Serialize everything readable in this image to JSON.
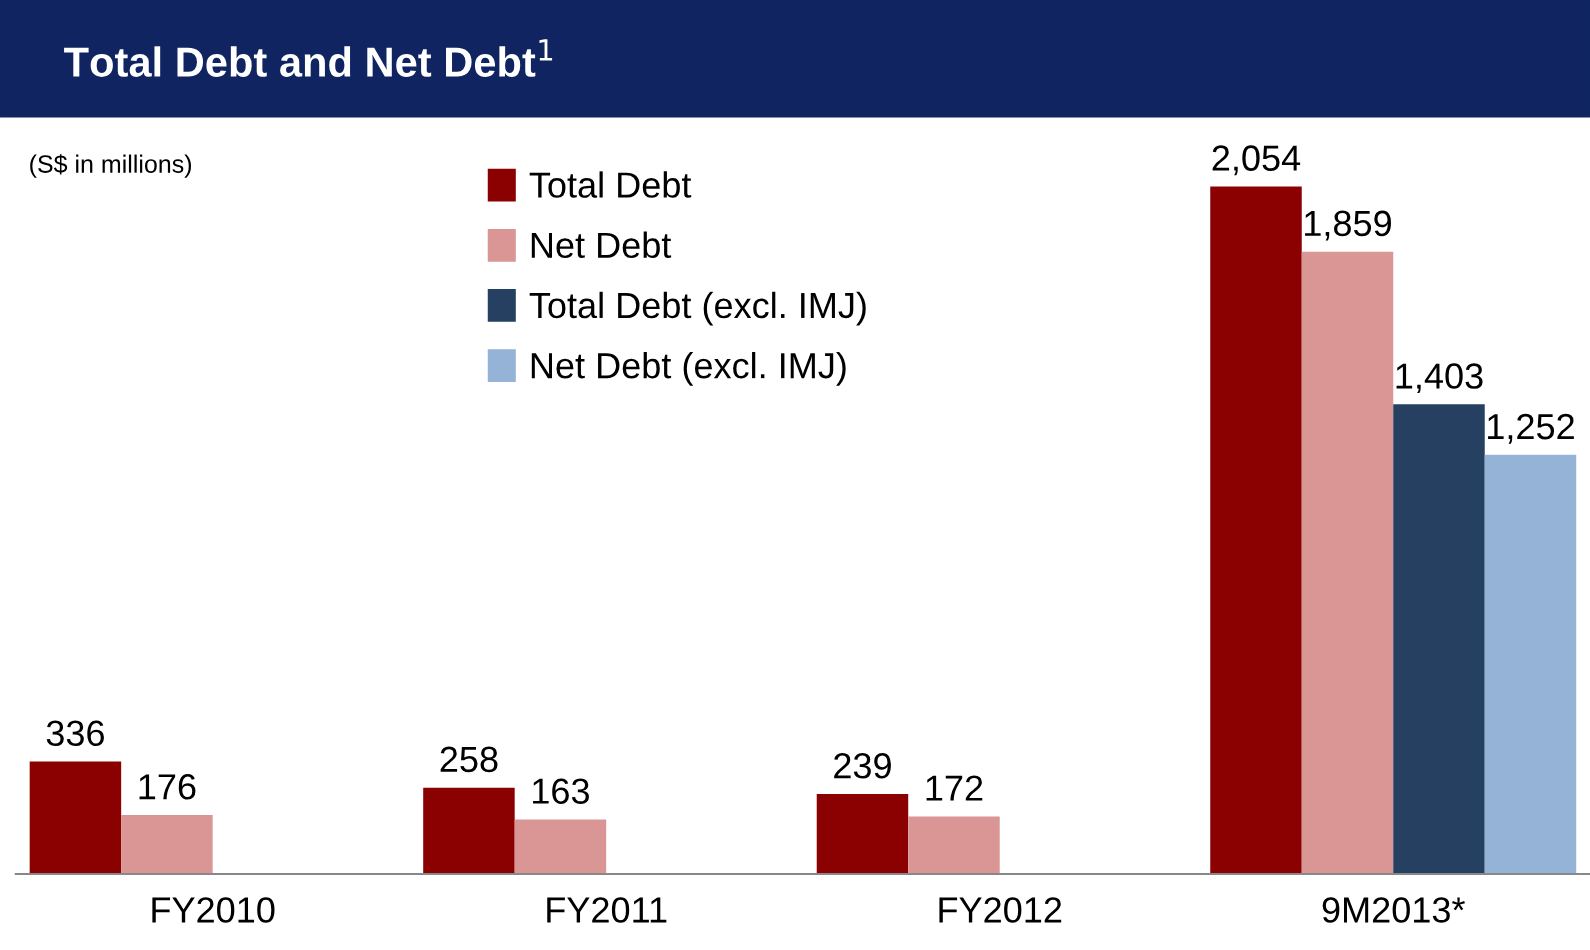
{
  "chart_data": {
    "type": "bar",
    "title": "Total Debt and Net Debt$^{1}$",
    "annotations": [
      "(S$ in millions)"
    ],
    "categories": [
      "FY2010",
      "FY2011",
      "FY2012",
      "9M2013*"
    ],
    "series": [
      {
        "name": "Total Debt",
        "color": "#8b0000",
        "values": [
          336,
          258,
          239,
          2054
        ],
        "value_labels": [
          "336",
          "258",
          "239",
          "2,054"
        ]
      },
      {
        "name": "Net Debt",
        "color": "#d99694",
        "values": [
          176,
          163,
          172,
          1859
        ],
        "value_labels": [
          "176",
          "163",
          "172",
          "1,859"
        ]
      },
      {
        "name": "Total Debt (excl. IMJ)",
        "color": "#254061",
        "values": [
          null,
          null,
          null,
          1403
        ],
        "value_labels": [
          null,
          null,
          null,
          "1,403"
        ]
      },
      {
        "name": "Net Debt (excl. IMJ)",
        "color": "#95b3d7",
        "values": [
          null,
          null,
          null,
          1252
        ],
        "value_labels": [
          null,
          null,
          null,
          "1,252"
        ]
      }
    ],
    "legend": "top",
    "grid": false
  }
}
